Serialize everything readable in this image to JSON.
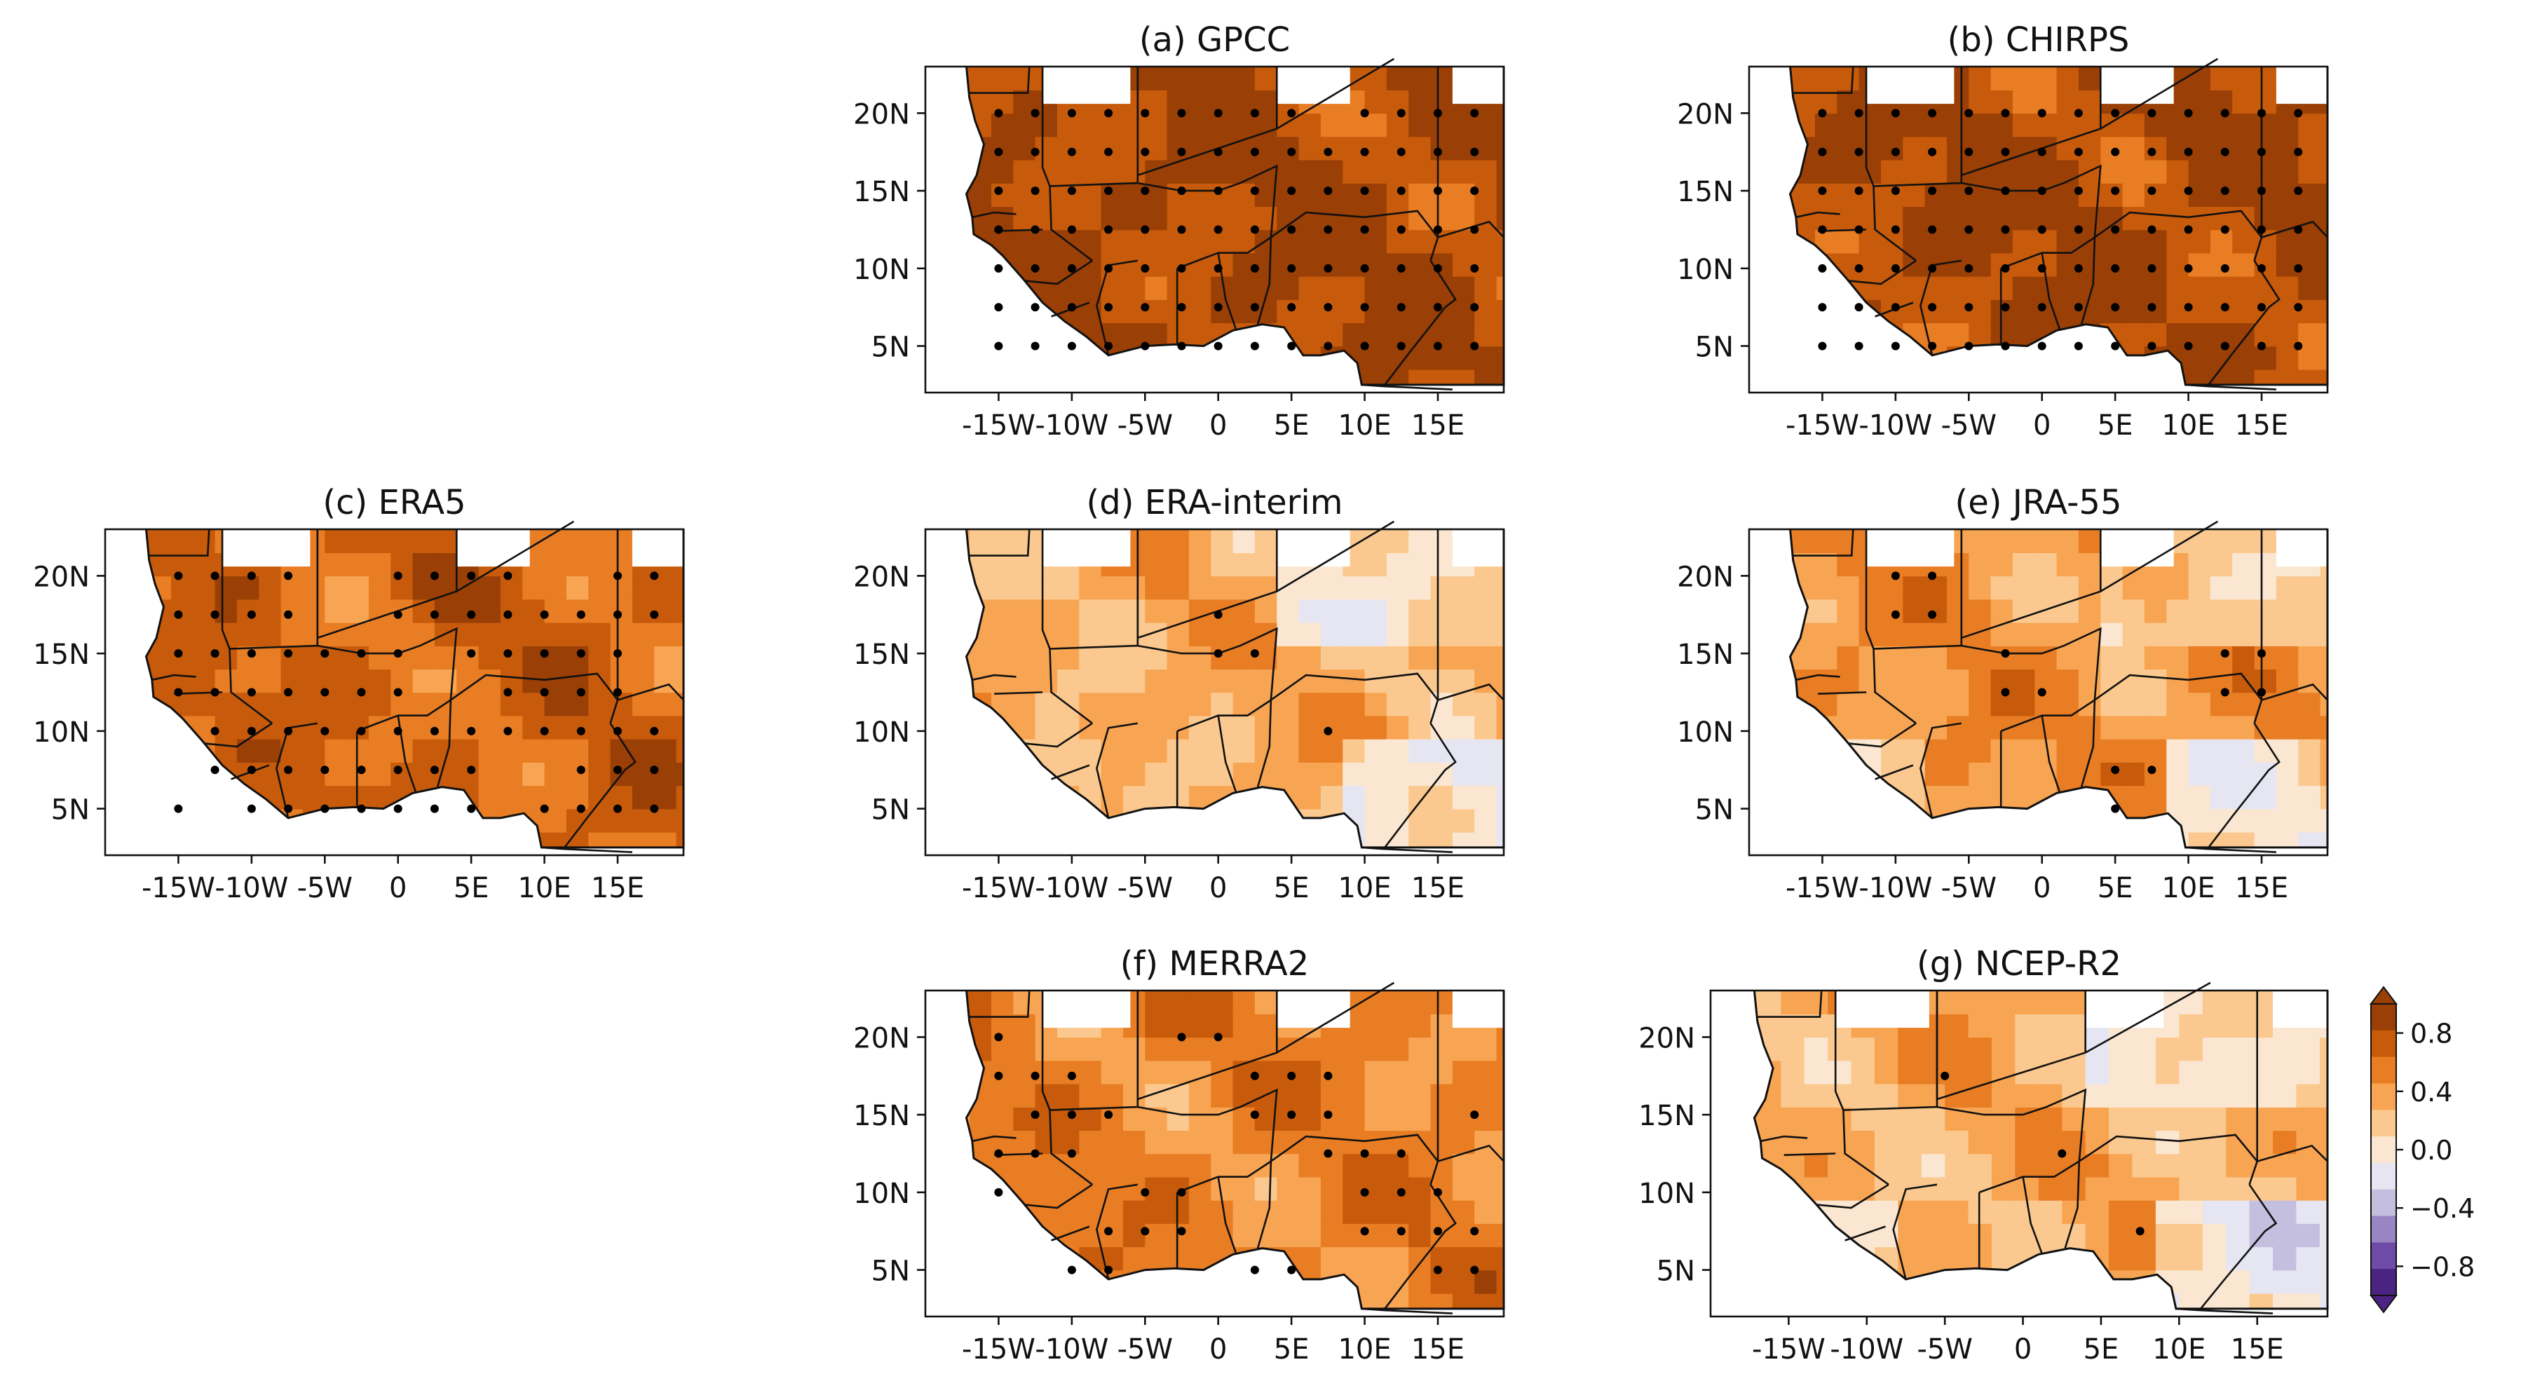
{
  "chart_data": {
    "type": "heatmap",
    "description_kind": "filled-contour maps with stippling over West Africa",
    "longitude_ticks": [
      "-15W",
      "-10W",
      "-5W",
      "0",
      "5E",
      "10E",
      "15E"
    ],
    "longitude_tick_values": [
      -15,
      -10,
      -5,
      0,
      5,
      10,
      15
    ],
    "latitude_ticks": [
      "20N",
      "15N",
      "10N",
      "5N"
    ],
    "latitude_tick_values": [
      20,
      15,
      10,
      5
    ],
    "lon_range": [
      -20,
      19.5
    ],
    "lat_range": [
      2,
      23
    ],
    "colorbar": {
      "ticks": [
        "0.8",
        "0.4",
        "0.0",
        "−0.4",
        "−0.8"
      ],
      "tick_values": [
        0.8,
        0.4,
        0.0,
        -0.4,
        -0.8
      ],
      "range": [
        -1.0,
        1.0
      ],
      "colors": [
        "#4b2383",
        "#6d4ba6",
        "#9886c4",
        "#c5bfdf",
        "#e6e6f2",
        "#fbe7d1",
        "#fbc98f",
        "#f8a553",
        "#e87d24",
        "#c75b0b",
        "#9a3f05"
      ]
    },
    "panels": [
      {
        "id": "a",
        "title": "(a) GPCC",
        "level": 0.82,
        "show_lat": true,
        "show_lon": true
      },
      {
        "id": "b",
        "title": "(b) CHIRPS",
        "level": 0.84,
        "show_lat": true,
        "show_lon": true
      },
      {
        "id": "c",
        "title": "(c) ERA5",
        "level": 0.66,
        "show_lat": true,
        "show_lon": true
      },
      {
        "id": "d",
        "title": "(d) ERA-interim",
        "level": 0.34,
        "show_lat": true,
        "show_lon": true
      },
      {
        "id": "e",
        "title": "(e) JRA-55",
        "level": 0.44,
        "show_lat": true,
        "show_lon": true
      },
      {
        "id": "f",
        "title": "(f) MERRA2",
        "level": 0.52,
        "show_lat": true,
        "show_lon": true
      },
      {
        "id": "g",
        "title": "(g) NCEP-R2",
        "level": 0.32,
        "show_lat": true,
        "show_lon": true
      }
    ]
  }
}
